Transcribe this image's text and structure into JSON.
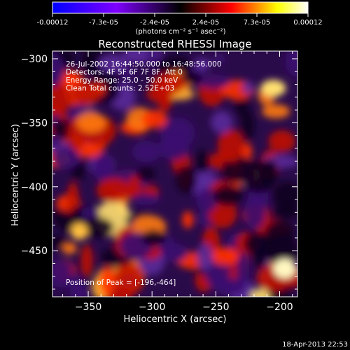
{
  "colorbar": {
    "tick_labels": [
      "-0.00012",
      "-7.3e-05",
      "-2.4e-05",
      "2.4e-05",
      "7.3e-05",
      "0.00012"
    ],
    "range": [
      -0.00012,
      0.00012
    ],
    "units_label": "(photons cm⁻² s⁻¹ asec⁻²)",
    "colormap": [
      "#0000ff",
      "#7f00ff",
      "#000000",
      "#ff0000",
      "#ffff00",
      "#ffffff"
    ]
  },
  "chart_data": {
    "type": "heatmap",
    "title": "Reconstructed RHESSI Image",
    "xlabel": "Heliocentric X (arcsec)",
    "ylabel": "Heliocentric Y (arcsec)",
    "xlim": [
      -378,
      -186
    ],
    "ylim": [
      -486,
      -294
    ],
    "x_ticks": [
      -350,
      -300,
      -250,
      -200
    ],
    "y_ticks": [
      -300,
      -350,
      -400,
      -450
    ],
    "x_tick_labels": [
      "−350",
      "−300",
      "−250",
      "−200"
    ],
    "y_tick_labels": [
      "−300",
      "−350",
      "−400",
      "−450"
    ],
    "annotations": [
      "26-Jul-2002 16:44:50.000 to 16:48:56.000",
      "Detectors: 4F 5F 6F 7F 8F, Att 0",
      "Energy Range: 25.0 - 50.0 keV",
      "Clean    Total counts: 2.52E+03"
    ],
    "peak_label": "Position of Peak = [-196,-464]",
    "peak_position": [
      -196,
      -464
    ]
  },
  "footer": {
    "date": "18-Apr-2013 22:53"
  }
}
